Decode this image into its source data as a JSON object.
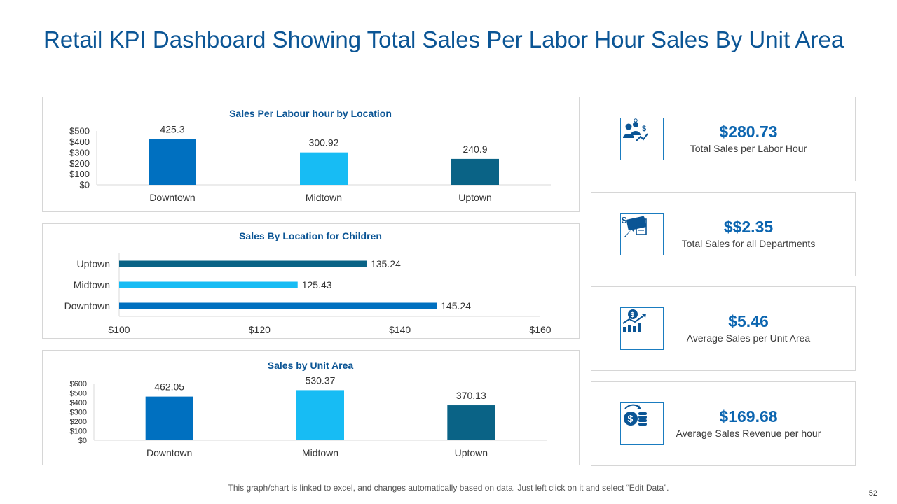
{
  "page": {
    "title": "Retail KPI Dashboard Showing Total Sales Per Labor Hour Sales By Unit Area",
    "footer_note": "This graph/chart is linked to excel, and changes automatically based on data. Just left click on it and select “Edit Data”.",
    "page_number": "52"
  },
  "colors": {
    "downtown": "#0070c0",
    "midtown": "#17bcf4",
    "uptown": "#0a6386",
    "title": "#0b5595",
    "kpi_accent": "#0b65b0"
  },
  "chart_data": [
    {
      "type": "bar",
      "title": "Sales Per Labour hour by Location",
      "categories": [
        "Downtown",
        "Midtown",
        "Uptown"
      ],
      "values": [
        425.3,
        300.92,
        240.9
      ],
      "data_labels": [
        "425.3",
        "300.92",
        "240.9"
      ],
      "ylim": [
        0,
        500
      ],
      "y_ticks": [
        0,
        100,
        200,
        300,
        400,
        500
      ],
      "y_tick_labels": [
        "$0",
        "$100",
        "$200",
        "$300",
        "$400",
        "$500"
      ],
      "xlabel": "",
      "ylabel": "",
      "grid": false
    },
    {
      "type": "bar",
      "orientation": "horizontal",
      "title": "Sales By Location for Children",
      "categories": [
        "Downtown",
        "Midtown",
        "Uptown"
      ],
      "values": [
        145.24,
        125.43,
        135.24
      ],
      "data_labels": [
        "145.24",
        "125.43",
        "135.24"
      ],
      "xlim": [
        100,
        160
      ],
      "x_ticks": [
        100,
        120,
        140,
        160
      ],
      "x_tick_labels": [
        "$100",
        "$120",
        "$140",
        "$160"
      ],
      "xlabel": "",
      "ylabel": "",
      "grid": false
    },
    {
      "type": "bar",
      "title": "Sales by Unit Area",
      "categories": [
        "Downtown",
        "Midtown",
        "Uptown"
      ],
      "values": [
        462.05,
        530.37,
        370.13
      ],
      "data_labels": [
        "462.05",
        "530.37",
        "370.13"
      ],
      "ylim": [
        0,
        600
      ],
      "y_ticks": [
        0,
        100,
        200,
        300,
        400,
        500,
        600
      ],
      "y_tick_labels": [
        "$0",
        "$100",
        "$200",
        "$300",
        "$400",
        "$500",
        "$600"
      ],
      "xlabel": "",
      "ylabel": "",
      "grid": false
    }
  ],
  "kpis": [
    {
      "value": "$280.73",
      "label": "Total Sales per Labor Hour",
      "icon": "people-money-icon"
    },
    {
      "value": "$$2.35",
      "label": "Total Sales for all Departments",
      "icon": "cash-tag-icon"
    },
    {
      "value": "$5.46",
      "label": "Average Sales per Unit Area",
      "icon": "growth-chart-icon"
    },
    {
      "value": "$169.68",
      "label": "Average Sales Revenue per hour",
      "icon": "coins-stack-icon"
    }
  ]
}
